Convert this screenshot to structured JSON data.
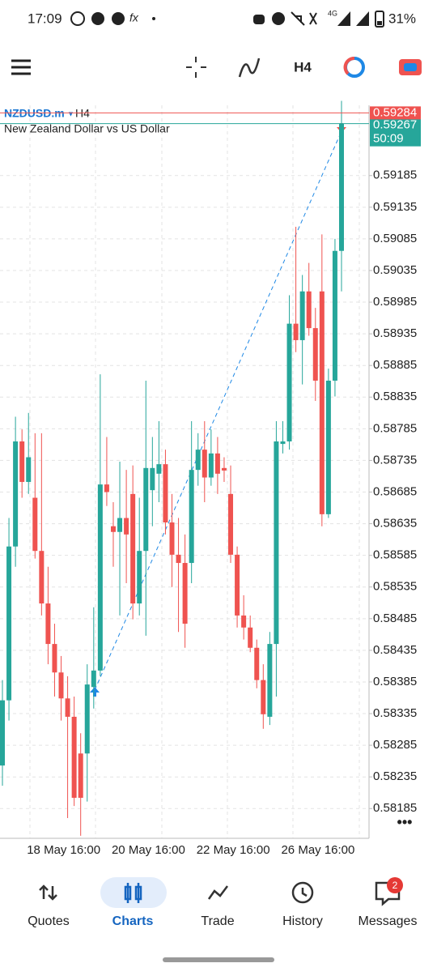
{
  "status_bar": {
    "time": "17:09",
    "network": "4G",
    "battery": "31%"
  },
  "toolbar": {
    "timeframe": "H4"
  },
  "chart_data": {
    "type": "candlestick",
    "symbol": "NZDUSD.m",
    "timeframe": "H4",
    "subtitle": "New Zealand Dollar vs US Dollar",
    "categories": [
      null,
      null,
      null,
      null,
      "18 May 16:00",
      null,
      null,
      null,
      null,
      null,
      null,
      null,
      null,
      null,
      null,
      null,
      null,
      "20 May 16:00",
      null,
      null,
      null,
      null,
      null,
      null,
      null,
      null,
      null,
      null,
      null,
      null,
      "22 May 16:00",
      null,
      null,
      null,
      null,
      null,
      null,
      null,
      null,
      null,
      null,
      null,
      null,
      "26 May 16:00",
      null,
      null,
      null,
      null,
      null,
      null,
      null,
      null,
      null
    ],
    "open": [
      0.58253,
      0.58356,
      0.58599,
      0.58765,
      0.58701,
      0.58676,
      0.58592,
      0.58509,
      0.58445,
      0.584,
      0.58359,
      0.5833,
      0.58272,
      0.58272,
      0.58377,
      0.58403,
      0.58697,
      0.58631,
      0.58622,
      0.58644,
      0.58682,
      0.58509,
      0.58592,
      0.58688,
      0.58714,
      0.58729,
      0.58637,
      0.58586,
      0.58573,
      0.58573,
      0.5872,
      0.58752,
      0.58708,
      0.58746,
      0.58723,
      0.58682,
      0.58586,
      0.5849,
      0.58471,
      0.58439,
      0.58388,
      0.5833,
      0.58445,
      0.58761,
      0.58765,
      0.58951,
      0.58925,
      0.59002,
      0.58944,
      0.59002,
      0.5865,
      0.58861,
      0.59066
    ],
    "high": [
      0.58388,
      0.58644,
      0.58804,
      0.58784,
      0.5881,
      0.58778,
      0.58778,
      0.58567,
      0.58477,
      0.58426,
      0.58394,
      0.58362,
      0.58304,
      0.58413,
      0.58503,
      0.58871,
      0.58772,
      0.58669,
      0.58733,
      0.5872,
      0.58727,
      0.58676,
      0.58861,
      0.58772,
      0.58797,
      0.58752,
      0.58682,
      0.58644,
      0.58618,
      0.58797,
      0.58778,
      0.58797,
      0.58784,
      0.58772,
      0.5874,
      0.58727,
      0.58599,
      0.58522,
      0.5849,
      0.58452,
      0.58413,
      0.58464,
      0.58797,
      0.58797,
      0.58996,
      0.59104,
      0.59028,
      0.59047,
      0.58976,
      0.59092,
      0.5888,
      0.59085,
      0.59303
    ],
    "low": [
      0.58221,
      0.58324,
      0.58567,
      0.58676,
      0.58682,
      0.5858,
      0.5849,
      0.58413,
      0.58362,
      0.58324,
      0.5817,
      0.58189,
      0.58142,
      0.58196,
      0.58343,
      0.58394,
      0.58663,
      0.58567,
      0.5849,
      0.58541,
      0.58484,
      0.5849,
      0.58458,
      0.58631,
      0.58669,
      0.58618,
      0.58535,
      0.58464,
      0.58439,
      0.58541,
      0.58695,
      0.58669,
      0.58695,
      0.58682,
      0.58701,
      0.58573,
      0.58471,
      0.58452,
      0.58432,
      0.58375,
      0.58311,
      0.58317,
      0.58362,
      0.58746,
      0.58752,
      0.58906,
      0.58855,
      0.58932,
      0.58829,
      0.58631,
      0.58644,
      0.58836,
      0.59002
    ],
    "close": [
      0.58356,
      0.58599,
      0.58765,
      0.58701,
      0.5874,
      0.58592,
      0.58509,
      0.58445,
      0.584,
      0.58359,
      0.5833,
      0.58202,
      0.58202,
      0.58381,
      0.58403,
      0.58697,
      0.58685,
      0.58622,
      0.58644,
      0.58618,
      0.58509,
      0.58592,
      0.58723,
      0.58723,
      0.58729,
      0.58637,
      0.58586,
      0.58573,
      0.58477,
      0.5872,
      0.58752,
      0.58708,
      0.58746,
      0.58714,
      0.58719,
      0.58586,
      0.5849,
      0.58471,
      0.58439,
      0.58388,
      0.58334,
      0.58445,
      0.58765,
      0.58765,
      0.58951,
      0.58925,
      0.59002,
      0.58944,
      0.58861,
      0.5865,
      0.58861,
      0.59066,
      0.59267
    ],
    "up_color": "#26a69a",
    "down_color": "#ef5350",
    "ylim": [
      0.58138,
      0.59296
    ],
    "yticks": [
      0.59185,
      0.59135,
      0.59085,
      0.59035,
      0.58985,
      0.58935,
      0.58885,
      0.58835,
      0.58785,
      0.58735,
      0.58685,
      0.58635,
      0.58585,
      0.58535,
      0.58485,
      0.58435,
      0.58385,
      0.58335,
      0.58285,
      0.58235,
      0.58185
    ],
    "grid": true,
    "ask": 0.59284,
    "ask_color": "#ef5350",
    "bid": 0.59267,
    "bid_color": "#26a69a",
    "countdown": "50:09"
  },
  "nav": {
    "items": [
      "Quotes",
      "Charts",
      "Trade",
      "History",
      "Messages"
    ],
    "active": 1,
    "badge": 2
  }
}
